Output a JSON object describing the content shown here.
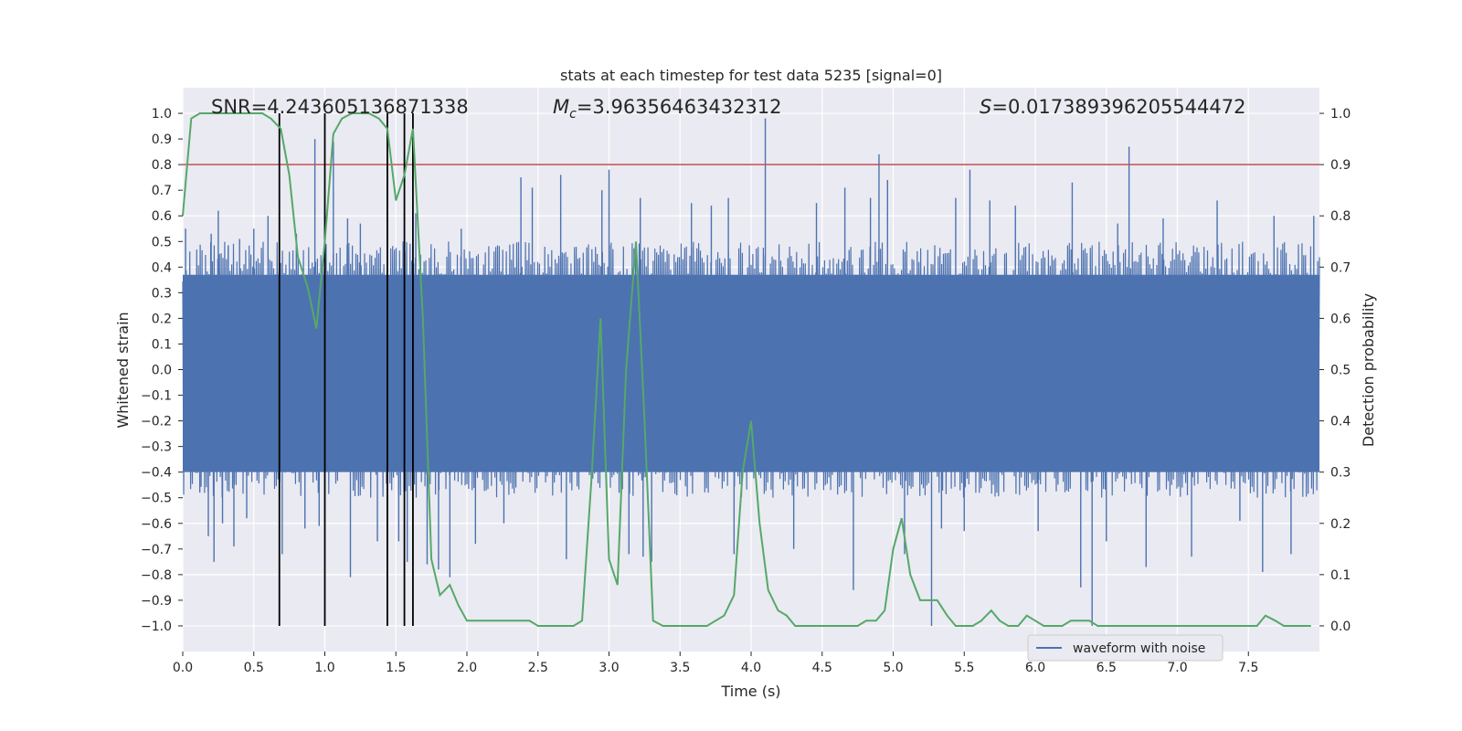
{
  "chart_data": {
    "type": "line",
    "title": "stats at each timestep for test data 5235 [signal=0]",
    "xlabel": "Time (s)",
    "ylabel": "Whitened strain",
    "y2label": "Detection probability",
    "xlim": [
      0,
      8
    ],
    "ylim": [
      -1.1,
      1.1
    ],
    "y2lim": [
      -0.05,
      1.05
    ],
    "xticks": [
      "0.0",
      "0.5",
      "1.0",
      "1.5",
      "2.0",
      "2.5",
      "3.0",
      "3.5",
      "4.0",
      "4.5",
      "5.0",
      "5.5",
      "6.0",
      "6.5",
      "7.0",
      "7.5"
    ],
    "yticks": [
      "−1.0",
      "−0.9",
      "−0.8",
      "−0.7",
      "−0.6",
      "−0.5",
      "−0.4",
      "−0.3",
      "−0.2",
      "−0.1",
      "0.0",
      "0.1",
      "0.2",
      "0.3",
      "0.4",
      "0.5",
      "0.6",
      "0.7",
      "0.8",
      "0.9",
      "1.0"
    ],
    "y2ticks": [
      "0.0",
      "0.1",
      "0.2",
      "0.3",
      "0.4",
      "0.5",
      "0.6",
      "0.7",
      "0.8",
      "0.9",
      "1.0"
    ],
    "grid": true,
    "legend": {
      "position": "lower-right",
      "entries": [
        "waveform with noise"
      ]
    },
    "annotations": {
      "snr": "SNR=4.243605136871338",
      "mc_symbol": "M",
      "mc_sub": "c",
      "mc_value": "=3.96356463432312",
      "s_symbol": "S",
      "s_value": "=0.017389396205544472"
    },
    "threshold": {
      "value": 0.9,
      "axis": "right",
      "color": "#c44e52"
    },
    "vertical_lines": [
      0.68,
      1.0,
      1.44,
      1.56,
      1.62
    ],
    "waveform": {
      "name": "waveform with noise",
      "color": "#4c72b0",
      "spikes": [
        [
          0.02,
          0.55
        ],
        [
          0.12,
          -0.48
        ],
        [
          0.18,
          -0.65
        ],
        [
          0.2,
          0.53
        ],
        [
          0.22,
          -0.75
        ],
        [
          0.25,
          0.62
        ],
        [
          0.28,
          -0.6
        ],
        [
          0.32,
          0.48
        ],
        [
          0.36,
          -0.69
        ],
        [
          0.4,
          0.51
        ],
        [
          0.45,
          -0.58
        ],
        [
          0.5,
          0.55
        ],
        [
          0.6,
          0.6
        ],
        [
          0.7,
          -0.72
        ],
        [
          0.8,
          0.53
        ],
        [
          0.86,
          -0.62
        ],
        [
          0.93,
          0.9
        ],
        [
          0.96,
          -0.61
        ],
        [
          1.06,
          0.89
        ],
        [
          1.16,
          0.59
        ],
        [
          1.18,
          -0.81
        ],
        [
          1.25,
          0.57
        ],
        [
          1.37,
          -0.67
        ],
        [
          1.52,
          -0.67
        ],
        [
          1.58,
          -0.75
        ],
        [
          1.64,
          0.61
        ],
        [
          1.72,
          -0.76
        ],
        [
          1.8,
          -0.78
        ],
        [
          1.88,
          -0.81
        ],
        [
          1.96,
          0.55
        ],
        [
          2.06,
          -0.68
        ],
        [
          2.26,
          -0.6
        ],
        [
          2.38,
          0.75
        ],
        [
          2.46,
          0.71
        ],
        [
          2.66,
          0.76
        ],
        [
          2.7,
          -0.74
        ],
        [
          2.95,
          0.7
        ],
        [
          3.0,
          0.78
        ],
        [
          3.14,
          -0.72
        ],
        [
          3.22,
          0.67
        ],
        [
          3.24,
          -0.73
        ],
        [
          3.3,
          -0.75
        ],
        [
          3.58,
          0.65
        ],
        [
          3.72,
          0.64
        ],
        [
          3.84,
          0.67
        ],
        [
          3.88,
          -0.72
        ],
        [
          4.1,
          0.98
        ],
        [
          4.3,
          -0.7
        ],
        [
          4.46,
          0.65
        ],
        [
          4.66,
          0.71
        ],
        [
          4.72,
          -0.86
        ],
        [
          4.84,
          0.67
        ],
        [
          4.9,
          0.84
        ],
        [
          4.96,
          0.74
        ],
        [
          5.08,
          -0.72
        ],
        [
          5.27,
          -1.0
        ],
        [
          5.34,
          -0.62
        ],
        [
          5.44,
          0.67
        ],
        [
          5.5,
          -0.63
        ],
        [
          5.54,
          0.78
        ],
        [
          5.68,
          0.66
        ],
        [
          5.86,
          0.64
        ],
        [
          6.02,
          -0.63
        ],
        [
          6.26,
          0.73
        ],
        [
          6.32,
          -0.85
        ],
        [
          6.4,
          -1.0
        ],
        [
          6.5,
          -0.67
        ],
        [
          6.58,
          0.57
        ],
        [
          6.66,
          0.87
        ],
        [
          6.78,
          -0.77
        ],
        [
          6.9,
          0.59
        ],
        [
          7.1,
          -0.73
        ],
        [
          7.28,
          0.66
        ],
        [
          7.44,
          -0.59
        ],
        [
          7.6,
          -0.79
        ],
        [
          7.68,
          0.6
        ],
        [
          7.8,
          -0.72
        ],
        [
          7.96,
          0.6
        ]
      ]
    },
    "probability": {
      "name": "detection probability",
      "color": "#55a868",
      "x": [
        0.0,
        0.06,
        0.12,
        0.19,
        0.25,
        0.31,
        0.38,
        0.44,
        0.5,
        0.56,
        0.62,
        0.69,
        0.75,
        0.81,
        0.88,
        0.94,
        1.0,
        1.06,
        1.12,
        1.19,
        1.25,
        1.31,
        1.38,
        1.44,
        1.5,
        1.56,
        1.62,
        1.69,
        1.75,
        1.81,
        1.88,
        1.94,
        2.0,
        2.06,
        2.12,
        2.19,
        2.25,
        2.31,
        2.38,
        2.44,
        2.5,
        2.56,
        2.62,
        2.69,
        2.75,
        2.81,
        2.88,
        2.94,
        3.0,
        3.06,
        3.12,
        3.19,
        3.25,
        3.31,
        3.38,
        3.44,
        3.5,
        3.56,
        3.62,
        3.69,
        3.75,
        3.81,
        3.88,
        3.94,
        4.0,
        4.06,
        4.12,
        4.19,
        4.25,
        4.31,
        4.38,
        4.44,
        4.5,
        4.56,
        4.62,
        4.69,
        4.75,
        4.81,
        4.88,
        4.94,
        5.0,
        5.06,
        5.12,
        5.19,
        5.25,
        5.31,
        5.38,
        5.44,
        5.5,
        5.56,
        5.62,
        5.69,
        5.75,
        5.81,
        5.88,
        5.94,
        6.0,
        6.06,
        6.12,
        6.19,
        6.25,
        6.31,
        6.38,
        6.44,
        6.5,
        6.56,
        6.62,
        6.69,
        6.75,
        6.81,
        6.88,
        6.94,
        7.0,
        7.06,
        7.12,
        7.19,
        7.25,
        7.31,
        7.38,
        7.44,
        7.5,
        7.56,
        7.62,
        7.69,
        7.75,
        7.81,
        7.88,
        7.94
      ],
      "y": [
        0.8,
        0.99,
        1.0,
        1.0,
        1.0,
        1.0,
        1.0,
        1.0,
        1.0,
        1.0,
        0.99,
        0.97,
        0.88,
        0.72,
        0.66,
        0.58,
        0.75,
        0.96,
        0.99,
        1.0,
        1.0,
        1.0,
        0.99,
        0.97,
        0.83,
        0.88,
        0.97,
        0.6,
        0.13,
        0.06,
        0.08,
        0.04,
        0.01,
        0.01,
        0.01,
        0.01,
        0.01,
        0.01,
        0.01,
        0.01,
        0.0,
        0.0,
        0.0,
        0.0,
        0.0,
        0.01,
        0.3,
        0.6,
        0.13,
        0.08,
        0.5,
        0.75,
        0.4,
        0.01,
        0.0,
        0.0,
        0.0,
        0.0,
        0.0,
        0.0,
        0.01,
        0.02,
        0.06,
        0.3,
        0.4,
        0.2,
        0.07,
        0.03,
        0.02,
        0.0,
        0.0,
        0.0,
        0.0,
        0.0,
        0.0,
        0.0,
        0.0,
        0.01,
        0.01,
        0.03,
        0.15,
        0.21,
        0.1,
        0.05,
        0.05,
        0.05,
        0.02,
        0.0,
        0.0,
        0.0,
        0.01,
        0.03,
        0.01,
        0.0,
        0.0,
        0.02,
        0.01,
        0.0,
        0.0,
        0.0,
        0.01,
        0.01,
        0.01,
        0.0,
        0.0,
        0.0,
        0.0,
        0.0,
        0.0,
        0.0,
        0.0,
        0.0,
        0.0,
        0.0,
        0.0,
        0.0,
        0.0,
        0.0,
        0.0,
        0.0,
        0.0,
        0.0,
        0.02,
        0.01,
        0.0,
        0.0,
        0.0,
        0.0
      ]
    }
  }
}
